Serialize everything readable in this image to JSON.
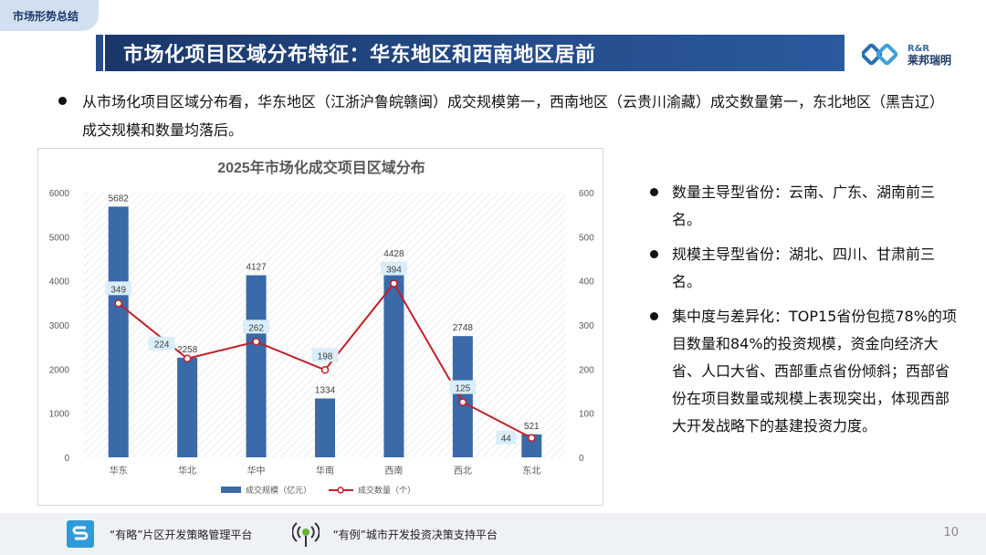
{
  "header": {
    "section_tab": "市场形势总结",
    "title": "市场化项目区域分布特征：华东地区和西南地区居前",
    "logo_top": "R&R",
    "logo_bottom": "莱邦瑞明"
  },
  "intro": {
    "text": "从市场化项目区域分布看，华东地区（江浙沪鲁皖赣闽）成交规模第一，西南地区（云贵川渝藏）成交数量第一，东北地区（黑吉辽）成交规模和数量均落后。"
  },
  "side_points": [
    {
      "text": "数量主导型省份：云南、广东、湖南前三名。"
    },
    {
      "text": "规模主导型省份：湖北、四川、甘肃前三名。"
    },
    {
      "text": "集中度与差异化：TOP15省份包揽78%的项目数量和84%的投资规模，资金向经济大省、人口大省、西部重点省份倾斜；西部省份在项目数量或规模上表现突出，体现西部大开发战略下的基建投资力度。"
    }
  ],
  "chart_data": {
    "type": "bar+line",
    "title": "2025年市场化成交项目区域分布",
    "categories": [
      "华东",
      "华北",
      "华中",
      "华南",
      "西南",
      "西北",
      "东北"
    ],
    "series": [
      {
        "name": "成交规模（亿元）",
        "type": "bar",
        "axis": "left",
        "values": [
          5682,
          2258,
          4127,
          1334,
          4428,
          2748,
          521
        ],
        "color": "#3a6aa8"
      },
      {
        "name": "成交数量（个）",
        "type": "line",
        "axis": "right",
        "values": [
          349,
          224,
          262,
          198,
          394,
          125,
          44
        ],
        "color": "#c0222a"
      }
    ],
    "left_axis": {
      "min": 0,
      "max": 6000,
      "ticks": [
        0,
        1000,
        2000,
        3000,
        4000,
        5000,
        6000
      ]
    },
    "right_axis": {
      "min": 0,
      "max": 600,
      "ticks": [
        0,
        100,
        200,
        300,
        400,
        500,
        600
      ]
    },
    "legend_position": "bottom",
    "grid": false
  },
  "footer": {
    "platform1": "“有略”片区开发策略管理平台",
    "platform2": "“有例”城市开发投资决策支持平台",
    "page_number": "10"
  }
}
